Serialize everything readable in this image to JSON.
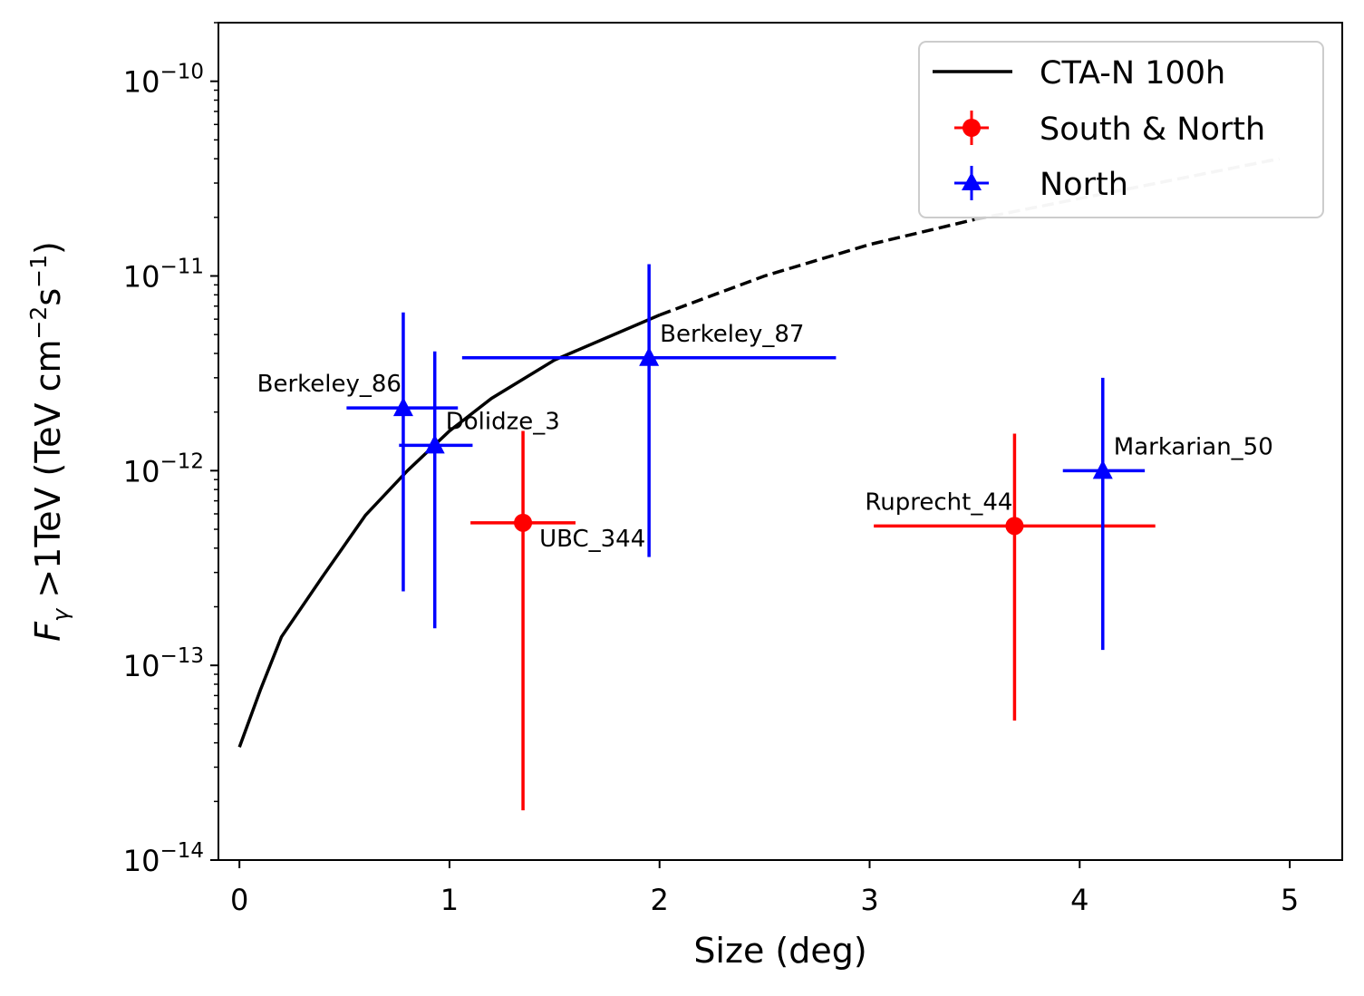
{
  "chart_data": {
    "type": "scatter",
    "title": "",
    "xlabel": "Size (deg)",
    "ylabel": {
      "main": "F",
      "sub": "γ",
      "rest": " >1TeV (TeV cm",
      "exp1": "−2",
      "mid": "s",
      "exp2": "−1",
      "end": ")"
    },
    "xlim": [
      -0.1,
      5.25
    ],
    "ylim": [
      1e-14,
      2e-10
    ],
    "yscale": "log",
    "grid": false,
    "legend_position": "top-right",
    "x_ticks": [
      {
        "value": 0,
        "label": "0"
      },
      {
        "value": 1,
        "label": "1"
      },
      {
        "value": 2,
        "label": "2"
      },
      {
        "value": 3,
        "label": "3"
      },
      {
        "value": 4,
        "label": "4"
      },
      {
        "value": 5,
        "label": "5"
      }
    ],
    "y_ticks": [
      {
        "value": 1e-14,
        "base": "10",
        "exp": "−14"
      },
      {
        "value": 1e-13,
        "base": "10",
        "exp": "−13"
      },
      {
        "value": 1e-12,
        "base": "10",
        "exp": "−12"
      },
      {
        "value": 1e-11,
        "base": "10",
        "exp": "−11"
      },
      {
        "value": 1e-10,
        "base": "10",
        "exp": "−10"
      }
    ],
    "sensitivity_curve": {
      "name": "CTA-N 100h",
      "color": "#000000",
      "solid": [
        [
          0,
          3.8e-14
        ],
        [
          0.1,
          7.5e-14
        ],
        [
          0.2,
          1.4e-13
        ],
        [
          0.4,
          2.9e-13
        ],
        [
          0.6,
          5.9e-13
        ],
        [
          0.8,
          1e-12
        ],
        [
          1.0,
          1.6e-12
        ],
        [
          1.2,
          2.35e-12
        ],
        [
          1.5,
          3.7e-12
        ],
        [
          2.0,
          6.3e-12
        ]
      ],
      "dashed": [
        [
          2.0,
          6.3e-12
        ],
        [
          2.5,
          1e-11
        ],
        [
          3.0,
          1.45e-11
        ],
        [
          3.5,
          1.95e-11
        ]
      ],
      "dashed_grey": [
        [
          3.5,
          1.95e-11
        ],
        [
          4.0,
          2.5e-11
        ],
        [
          4.5,
          3.2e-11
        ],
        [
          4.95,
          4e-11
        ]
      ]
    },
    "series": [
      {
        "name": "South & North",
        "color": "#ff0000",
        "marker": "circle",
        "points": [
          {
            "label": "UBC_344",
            "x": 1.35,
            "y": 5.4e-13,
            "xmin": 1.1,
            "xmax": 1.6,
            "ymin": 1.8e-14,
            "ymax": 1.6e-12,
            "label_anchor": "below-right"
          },
          {
            "label": "Ruprecht_44",
            "x": 3.69,
            "y": 5.2e-13,
            "xmin": 3.02,
            "xmax": 4.36,
            "ymin": 5.2e-14,
            "ymax": 1.55e-12,
            "label_anchor": "above-left"
          }
        ]
      },
      {
        "name": "North",
        "color": "#0000ff",
        "marker": "triangle",
        "points": [
          {
            "label": "Berkeley_86",
            "x": 0.78,
            "y": 2.1e-12,
            "xmin": 0.51,
            "xmax": 1.04,
            "ymin": 2.4e-13,
            "ymax": 6.5e-12,
            "label_anchor": "above-left"
          },
          {
            "label": "Dolidze_3",
            "x": 0.93,
            "y": 1.35e-12,
            "xmin": 0.76,
            "xmax": 1.11,
            "ymin": 1.55e-13,
            "ymax": 4.1e-12,
            "label_anchor": "above-right"
          },
          {
            "label": "Berkeley_87",
            "x": 1.95,
            "y": 3.8e-12,
            "xmin": 1.06,
            "xmax": 2.84,
            "ymin": 3.6e-13,
            "ymax": 1.15e-11,
            "label_anchor": "above-right"
          },
          {
            "label": "Markarian_50",
            "x": 4.11,
            "y": 1e-12,
            "xmin": 3.92,
            "xmax": 4.31,
            "ymin": 1.2e-13,
            "ymax": 3e-12,
            "label_anchor": "above-right"
          }
        ]
      }
    ]
  }
}
